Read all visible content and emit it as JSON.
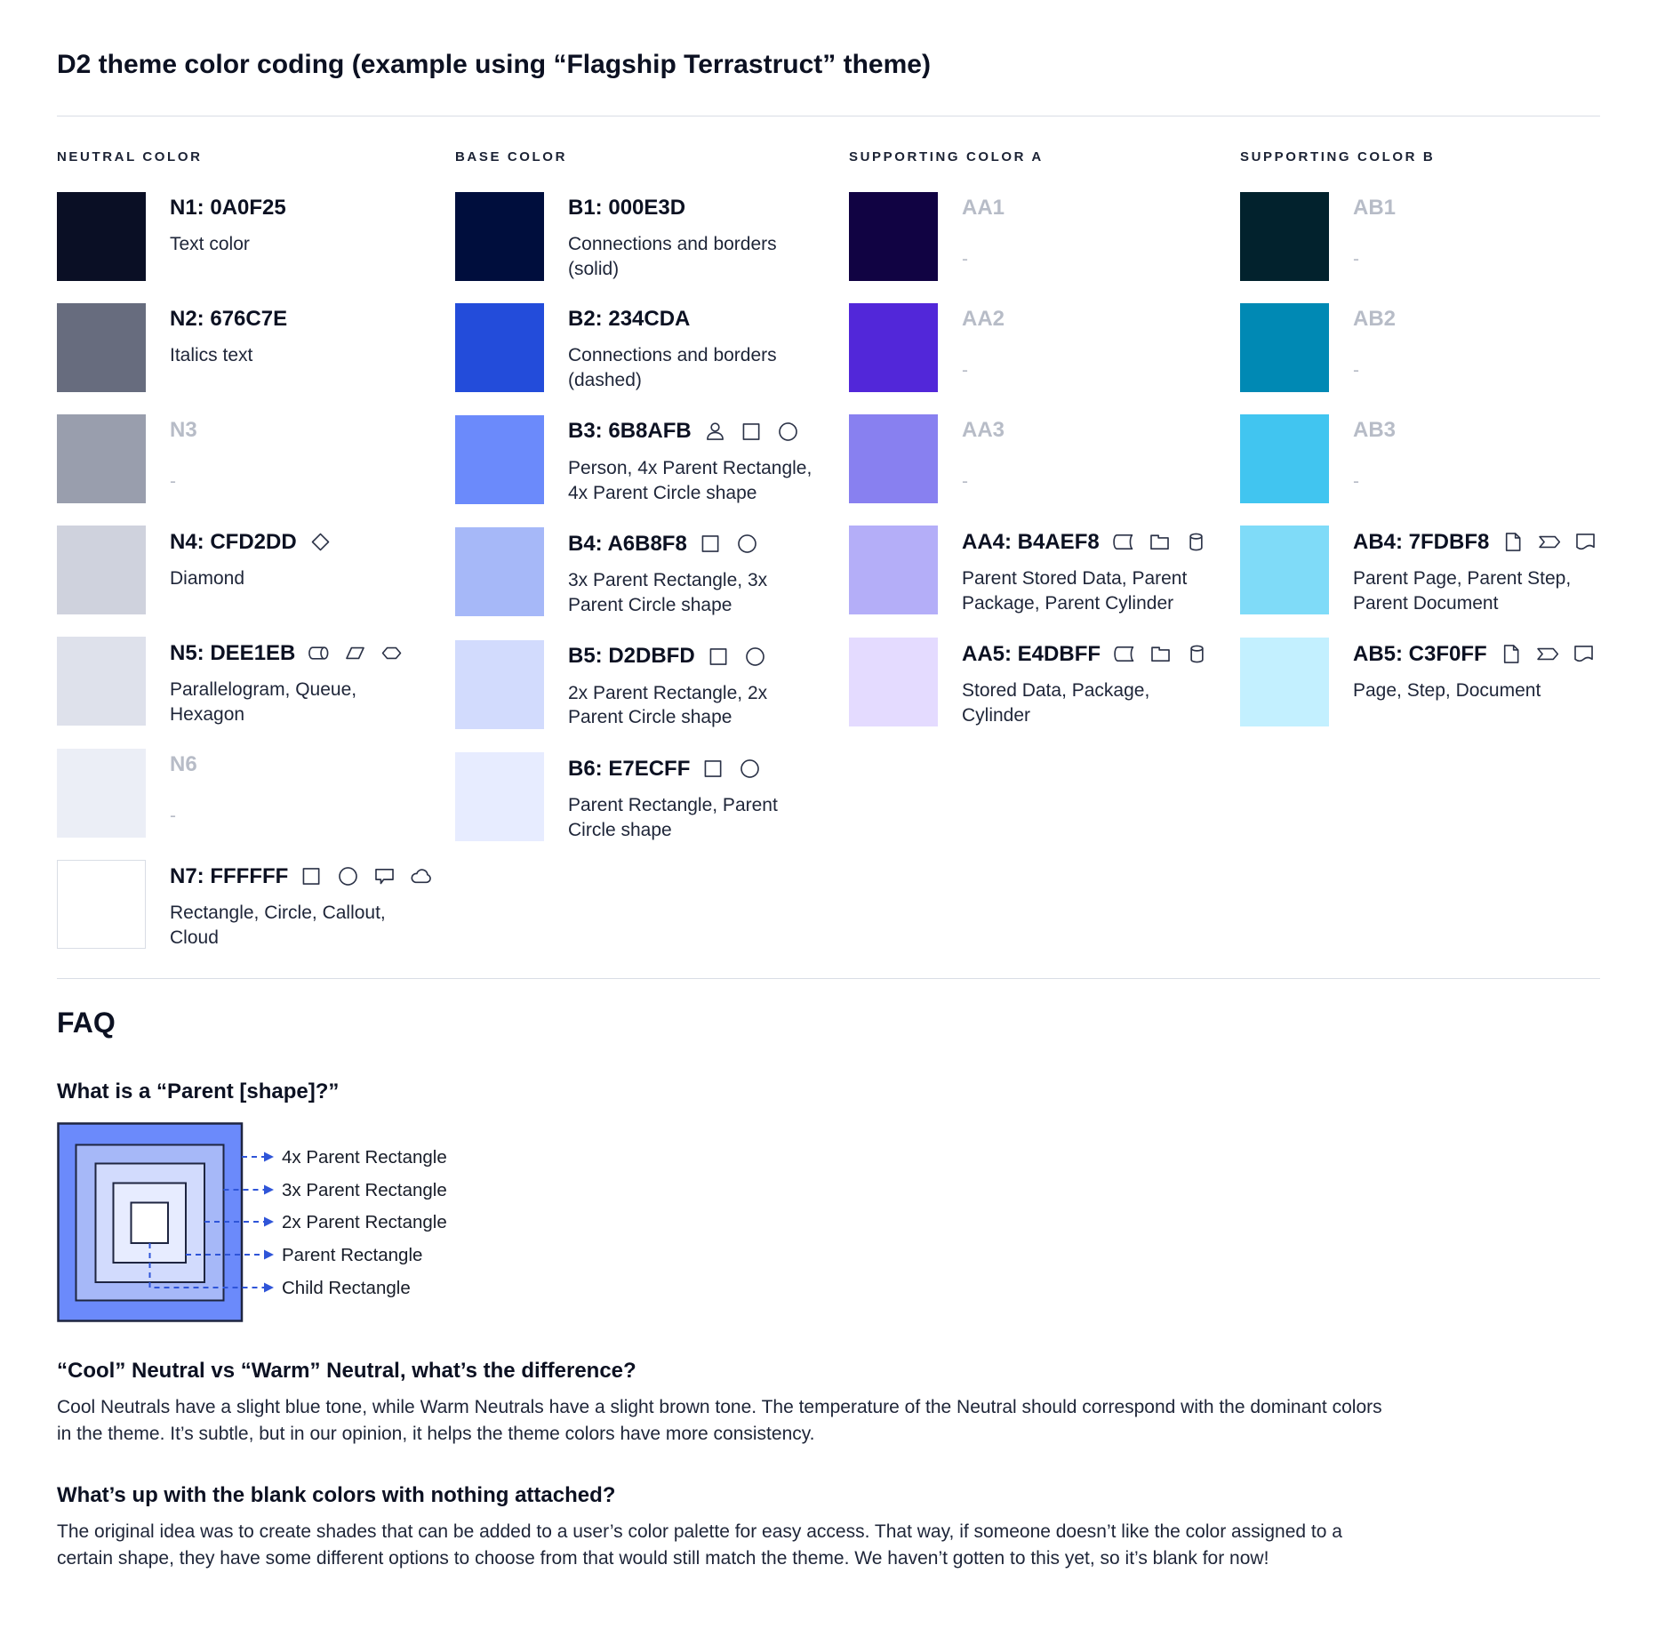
{
  "page": {
    "title": "D2 theme color coding (example using “Flagship Terrastruct” theme)"
  },
  "palette": {
    "columns": [
      {
        "header": "NEUTRAL COLOR",
        "rows": [
          {
            "title": "N1: 0A0F25",
            "desc": "Text color",
            "color": "#0A0F25",
            "muted": false,
            "icons": []
          },
          {
            "title": "N2: 676C7E",
            "desc": "Italics text",
            "color": "#676C7E",
            "muted": false,
            "icons": []
          },
          {
            "title": "N3",
            "desc": "-",
            "color": "#999EAD",
            "muted": true,
            "icons": []
          },
          {
            "title": "N4: CFD2DD",
            "desc": "Diamond",
            "color": "#CFD2DD",
            "muted": false,
            "icons": [
              "diamond"
            ]
          },
          {
            "title": "N5: DEE1EB",
            "desc": "Parallelogram, Queue, Hexagon",
            "color": "#DEE1EB",
            "muted": false,
            "icons": [
              "queue",
              "parallelogram",
              "hexagon"
            ]
          },
          {
            "title": "N6",
            "desc": "-",
            "color": "#EBEEF6",
            "muted": true,
            "icons": []
          },
          {
            "title": "N7: FFFFFF",
            "desc": "Rectangle, Circle, Callout, Cloud",
            "color": "#FFFFFF",
            "muted": false,
            "icons": [
              "rectangle",
              "circle",
              "callout",
              "cloud"
            ]
          }
        ]
      },
      {
        "header": "BASE COLOR",
        "rows": [
          {
            "title": "B1: 000E3D",
            "desc": "Connections and borders (solid)",
            "color": "#000E3D",
            "muted": false,
            "icons": []
          },
          {
            "title": "B2: 234CDA",
            "desc": "Connections and borders (dashed)",
            "color": "#234CDA",
            "muted": false,
            "icons": []
          },
          {
            "title": "B3: 6B8AFB",
            "desc": "Person, 4x Parent Rectangle, 4x Parent Circle shape",
            "color": "#6B8AFB",
            "muted": false,
            "icons": [
              "person",
              "rectangle",
              "circle"
            ]
          },
          {
            "title": "B4: A6B8F8",
            "desc": "3x Parent Rectangle, 3x Parent Circle shape",
            "color": "#A6B8F8",
            "muted": false,
            "icons": [
              "rectangle",
              "circle"
            ]
          },
          {
            "title": "B5: D2DBFD",
            "desc": "2x Parent Rectangle, 2x Parent Circle shape",
            "color": "#D2DBFD",
            "muted": false,
            "icons": [
              "rectangle",
              "circle"
            ]
          },
          {
            "title": "B6: E7ECFF",
            "desc": "Parent Rectangle, Parent Circle shape",
            "color": "#E7ECFF",
            "muted": false,
            "icons": [
              "rectangle",
              "circle"
            ]
          }
        ]
      },
      {
        "header": "SUPPORTING COLOR A",
        "rows": [
          {
            "title": "AA1",
            "desc": "-",
            "color": "#110343",
            "muted": true,
            "icons": []
          },
          {
            "title": "AA2",
            "desc": "-",
            "color": "#5227D9",
            "muted": true,
            "icons": []
          },
          {
            "title": "AA3",
            "desc": "-",
            "color": "#8880F0",
            "muted": true,
            "icons": []
          },
          {
            "title": "AA4: B4AEF8",
            "desc": "Parent Stored Data, Parent Package,  Parent Cylinder",
            "color": "#B4AEF8",
            "muted": false,
            "icons": [
              "stored-data",
              "package",
              "cylinder"
            ]
          },
          {
            "title": "AA5: E4DBFF",
            "desc": "Stored Data, Package, Cylinder",
            "color": "#E4DBFF",
            "muted": false,
            "icons": [
              "stored-data",
              "package",
              "cylinder"
            ]
          }
        ]
      },
      {
        "header": "SUPPORTING COLOR B",
        "rows": [
          {
            "title": "AB1",
            "desc": "-",
            "color": "#02222D",
            "muted": true,
            "icons": []
          },
          {
            "title": "AB2",
            "desc": "-",
            "color": "#0089B4",
            "muted": true,
            "icons": []
          },
          {
            "title": "AB3",
            "desc": "-",
            "color": "#41C5F0",
            "muted": true,
            "icons": []
          },
          {
            "title": "AB4: 7FDBF8",
            "desc": "Parent Page, Parent Step, Parent Document",
            "color": "#7FDBF8",
            "muted": false,
            "icons": [
              "page",
              "step",
              "document"
            ]
          },
          {
            "title": "AB5: C3F0FF",
            "desc": "Page, Step, Document",
            "color": "#C3F0FF",
            "muted": false,
            "icons": [
              "page",
              "step",
              "document"
            ]
          }
        ]
      }
    ]
  },
  "faq": {
    "heading": "FAQ",
    "q1": {
      "question": "What is a “Parent [shape]?”",
      "diagram_labels": [
        "4x Parent Rectangle",
        "3x Parent Rectangle",
        "2x Parent Rectangle",
        "Parent Rectangle",
        "Child Rectangle"
      ],
      "diagram_colors": [
        "#6B8AFB",
        "#A6B8F8",
        "#D2DBFD",
        "#E7ECFF",
        "#FFFFFF"
      ],
      "arrow_color": "#2F55D8"
    },
    "q2": {
      "question": "“Cool” Neutral vs “Warm” Neutral, what’s the difference?",
      "answer": "Cool Neutrals have a slight blue tone, while Warm Neutrals have a slight brown tone. The temperature of the Neutral should correspond with the dominant colors in the theme. It’s subtle, but in our opinion, it helps the theme colors have more consistency."
    },
    "q3": {
      "question": "What’s up with the blank colors with nothing attached?",
      "answer": "The original idea was to create shades that can be added to a user’s color palette for easy access. That way, if someone doesn’t like the color assigned to a certain shape, they have some different options to choose from that would still match the theme. We haven’t gotten to this yet, so it’s blank for now!"
    }
  }
}
